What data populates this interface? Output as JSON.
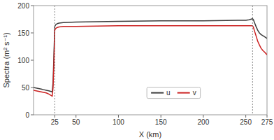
{
  "chart_data": {
    "type": "line",
    "x_label": "X (km)",
    "y_label": "Spectra (m² s⁻¹)",
    "x": [
      0,
      3,
      6,
      9,
      12,
      15,
      18,
      20,
      22,
      23,
      24,
      25,
      26,
      27,
      28,
      30,
      35,
      50,
      100,
      150,
      200,
      240,
      250,
      254,
      256,
      258,
      259,
      260,
      262,
      264,
      266,
      268,
      270,
      272,
      275
    ],
    "series": [
      {
        "name": "u",
        "color": "#3d3d3d",
        "values": [
          50,
          49,
          48,
          47,
          46,
          45,
          44,
          43,
          42,
          60,
          110,
          162,
          165,
          166,
          167,
          168,
          169,
          170,
          171,
          172,
          172,
          173,
          173,
          174,
          175,
          176,
          174,
          170,
          162,
          155,
          150,
          147,
          145,
          143,
          140
        ]
      },
      {
        "name": "v",
        "color": "#cc2222",
        "values": [
          45,
          44,
          43,
          42,
          41,
          40,
          38,
          36,
          34,
          50,
          95,
          155,
          158,
          159,
          160,
          161,
          162,
          162,
          163,
          163,
          163,
          163,
          163,
          163,
          163,
          163,
          160,
          155,
          145,
          135,
          128,
          122,
          118,
          115,
          110
        ]
      }
    ],
    "vlines": [
      25,
      258
    ],
    "xlim": [
      0,
      275
    ],
    "ylim": [
      0,
      200
    ],
    "xticks": [
      25,
      50,
      100,
      150,
      200,
      250,
      275
    ],
    "yticks": [
      0,
      50,
      100,
      150,
      200
    ],
    "grid": false,
    "legend": "lower center"
  }
}
